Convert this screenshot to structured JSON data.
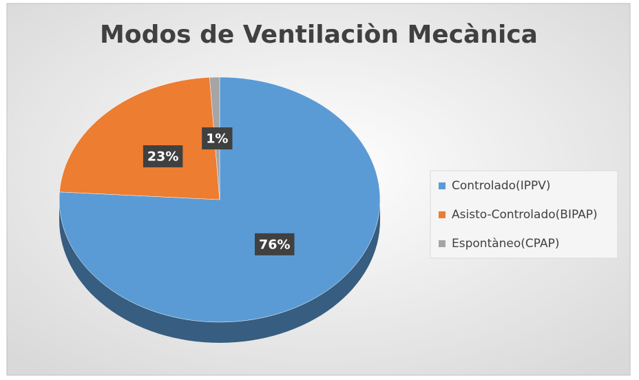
{
  "chart_data": {
    "type": "pie",
    "title": "Modos de Ventilaciòn Mecànica",
    "categories": [
      "Controlado(IPPV)",
      "Asisto-Controlado(BIPAP)",
      "Espontàneo(CPAP)"
    ],
    "values": [
      76,
      23,
      1
    ],
    "value_labels": [
      "76%",
      "23%",
      "1%"
    ],
    "colors": [
      "#5b9bd5",
      "#ed7d31",
      "#a5a5a5"
    ],
    "legend": "right"
  }
}
